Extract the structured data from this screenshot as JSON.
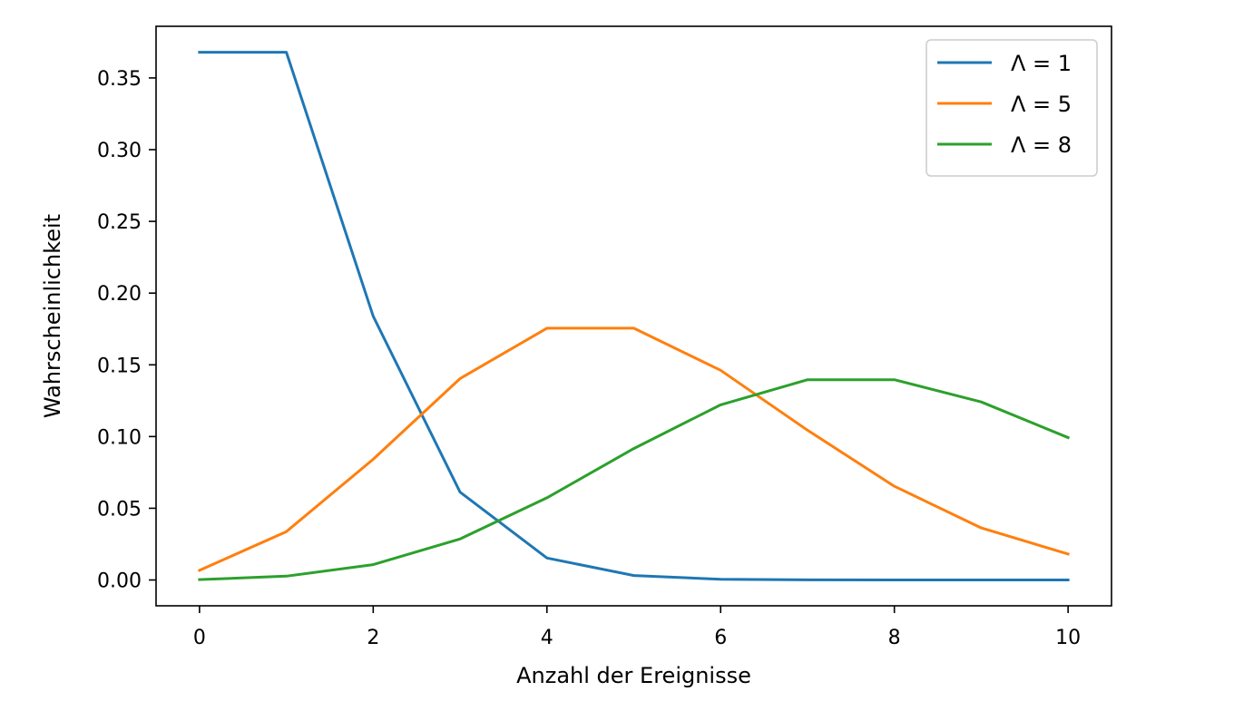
{
  "chart_data": {
    "type": "line",
    "title": "",
    "xlabel": "Anzahl der Ereignisse",
    "ylabel": "Wahrscheinlichkeit",
    "xlim": [
      -0.5,
      10.5
    ],
    "ylim": [
      -0.018,
      0.386
    ],
    "x_ticks": [
      0,
      2,
      4,
      6,
      8,
      10
    ],
    "x_tick_labels": [
      "0",
      "2",
      "4",
      "6",
      "8",
      "10"
    ],
    "y_ticks": [
      0.0,
      0.05,
      0.1,
      0.15,
      0.2,
      0.25,
      0.3,
      0.35
    ],
    "y_tick_labels": [
      "0.00",
      "0.05",
      "0.10",
      "0.15",
      "0.20",
      "0.25",
      "0.30",
      "0.35"
    ],
    "grid": false,
    "legend_position": "top-right",
    "x": [
      0,
      1,
      2,
      3,
      4,
      5,
      6,
      7,
      8,
      9,
      10
    ],
    "series": [
      {
        "name": "Λ = 1",
        "color": "#1f77b4",
        "values": [
          0.3679,
          0.3679,
          0.1839,
          0.0613,
          0.0153,
          0.0031,
          0.0005,
          0.0001,
          0.0,
          0.0,
          0.0
        ]
      },
      {
        "name": "Λ = 5",
        "color": "#ff7f0e",
        "values": [
          0.0067,
          0.0337,
          0.0842,
          0.1404,
          0.1755,
          0.1755,
          0.1462,
          0.1044,
          0.0653,
          0.0363,
          0.0181
        ]
      },
      {
        "name": "Λ = 8",
        "color": "#2ca02c",
        "values": [
          0.0003,
          0.0027,
          0.0107,
          0.0286,
          0.0573,
          0.0916,
          0.1221,
          0.1396,
          0.1396,
          0.1241,
          0.0993
        ]
      }
    ]
  }
}
